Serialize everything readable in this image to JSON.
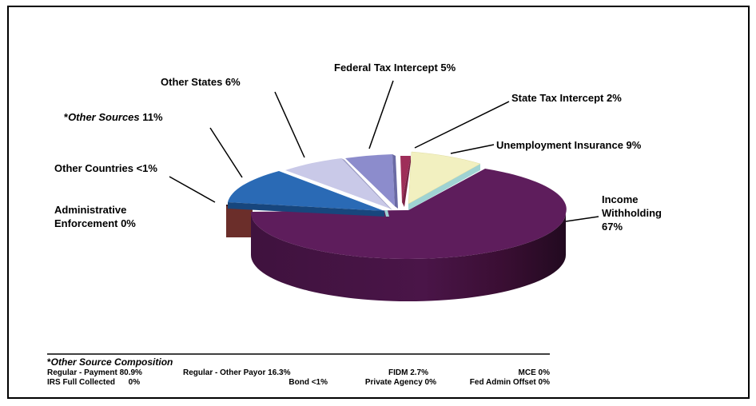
{
  "chart_data": {
    "type": "pie",
    "style": "3d-exploded",
    "slices": [
      {
        "name": "Income Withholding",
        "value": 67,
        "value_text": "67%",
        "color": "#5e1d5c"
      },
      {
        "name": "Unemployment Insurance",
        "value": 9,
        "value_text": "9%",
        "color": "#f2f0c0"
      },
      {
        "name": "State Tax Intercept",
        "value": 2,
        "value_text": "2%",
        "color": "#9e2e59"
      },
      {
        "name": "Federal Tax Intercept",
        "value": 5,
        "value_text": "5%",
        "color": "#8c8ccc"
      },
      {
        "name": "Other States",
        "value": 6,
        "value_text": "6%",
        "color": "#c9c9e8"
      },
      {
        "name": "Other Sources",
        "value": 11,
        "value_text": "11%",
        "color": "#2a6ab5"
      },
      {
        "name": "Other Countries",
        "value": 0.5,
        "value_text": "<1%",
        "color": "#9fd3d3"
      },
      {
        "name": "Administrative Enforcement",
        "value": 0,
        "value_text": "0%",
        "color": "#6b2e2a"
      }
    ],
    "labels": {
      "income": [
        "Income",
        "Withholding",
        "67%"
      ],
      "unemployment": "Unemployment Insurance 9%",
      "state_tax": "State Tax Intercept 2%",
      "federal_tax": "Federal Tax Intercept 5%",
      "other_states": "Other States 6%",
      "other_sources": {
        "star": "*",
        "italic": "Other Sources",
        "rest": " 11%"
      },
      "other_countries": "Other Countries <1%",
      "admin": [
        "Administrative",
        "Enforcement 0%"
      ]
    },
    "composition": {
      "title_star": "*",
      "title": "Other Source Composition",
      "row1": [
        "Regular - Payment 80.9%",
        "Regular - Other Payor 16.3%",
        "FIDM 2.7%",
        "MCE 0%"
      ],
      "row2": [
        "IRS Full Collected      0%",
        "Bond <1%",
        "Private Agency 0%",
        "Fed Admin Offset 0%"
      ]
    }
  }
}
